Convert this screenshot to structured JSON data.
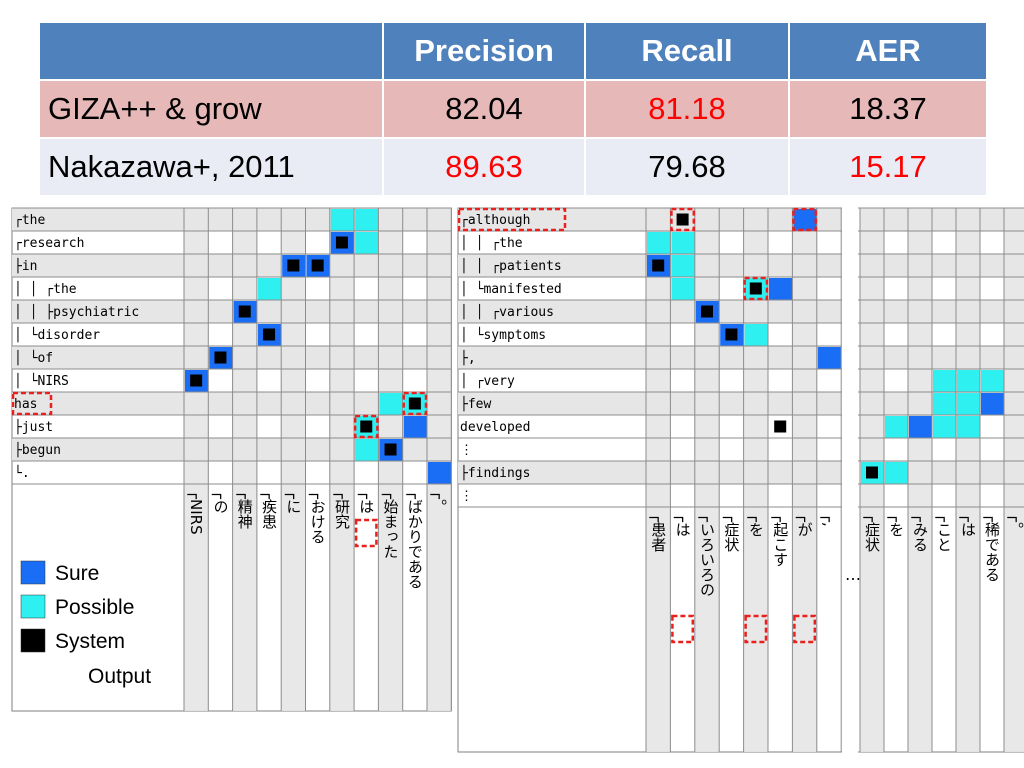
{
  "table": {
    "headers": [
      "",
      "Precision",
      "Recall",
      "AER"
    ],
    "rows": [
      {
        "name": "GIZA++ & grow",
        "values": [
          "82.04",
          "81.18",
          "18.37"
        ],
        "highlight": [
          false,
          true,
          false
        ]
      },
      {
        "name": "Nakazawa+, 2011",
        "values": [
          "89.63",
          "79.68",
          "15.17"
        ],
        "highlight": [
          true,
          false,
          true
        ]
      }
    ]
  },
  "legend": {
    "sure": "Sure",
    "possible": "Possible",
    "system_line1": "System",
    "system_line2": "Output"
  },
  "colors": {
    "sure": "#1a6ef5",
    "possible": "#2ef0f0",
    "system": "#000000",
    "header": "#4f81bd",
    "highlight_text": "#ff0000",
    "dashed_box": "#e8201e"
  },
  "ellipsis": "…",
  "left_grid": {
    "rows": [
      "┌the",
      "┌research",
      "├in",
      "│ │ ┌the",
      "│ │ ├psychiatric",
      "│ └disorder",
      "│   └of",
      "│     └NIRS",
      "has",
      "├just",
      "├begun",
      "└."
    ],
    "shaded_rows": [
      0,
      2,
      4,
      6,
      8,
      10
    ],
    "columns": [
      "┌NIRS",
      "┌の",
      "┌精神",
      "┌疾患",
      "┌に",
      "┌おける",
      "┌研究",
      "┌は",
      "┌始まった",
      "┌ばかりである",
      "┌。"
    ],
    "shaded_cols": [
      0,
      2,
      4,
      6,
      8,
      10
    ],
    "cells": [
      {
        "r": 0,
        "c": 6,
        "t": "possible"
      },
      {
        "r": 0,
        "c": 7,
        "t": "possible"
      },
      {
        "r": 1,
        "c": 6,
        "t": "sure"
      },
      {
        "r": 1,
        "c": 6,
        "t": "system"
      },
      {
        "r": 1,
        "c": 7,
        "t": "possible"
      },
      {
        "r": 2,
        "c": 4,
        "t": "sure"
      },
      {
        "r": 2,
        "c": 4,
        "t": "system"
      },
      {
        "r": 2,
        "c": 5,
        "t": "sure"
      },
      {
        "r": 2,
        "c": 5,
        "t": "system"
      },
      {
        "r": 3,
        "c": 3,
        "t": "possible"
      },
      {
        "r": 4,
        "c": 2,
        "t": "sure"
      },
      {
        "r": 4,
        "c": 2,
        "t": "system"
      },
      {
        "r": 5,
        "c": 3,
        "t": "sure"
      },
      {
        "r": 5,
        "c": 3,
        "t": "system"
      },
      {
        "r": 6,
        "c": 1,
        "t": "sure"
      },
      {
        "r": 6,
        "c": 1,
        "t": "system"
      },
      {
        "r": 7,
        "c": 0,
        "t": "sure"
      },
      {
        "r": 7,
        "c": 0,
        "t": "system"
      },
      {
        "r": 8,
        "c": 8,
        "t": "possible"
      },
      {
        "r": 8,
        "c": 9,
        "t": "possible"
      },
      {
        "r": 8,
        "c": 9,
        "t": "system"
      },
      {
        "r": 9,
        "c": 7,
        "t": "possible"
      },
      {
        "r": 9,
        "c": 7,
        "t": "system"
      },
      {
        "r": 9,
        "c": 9,
        "t": "sure"
      },
      {
        "r": 10,
        "c": 7,
        "t": "possible"
      },
      {
        "r": 10,
        "c": 8,
        "t": "sure"
      },
      {
        "r": 10,
        "c": 8,
        "t": "system"
      },
      {
        "r": 11,
        "c": 10,
        "t": "sure"
      }
    ],
    "dashed_rows": [
      8
    ],
    "dashed_cells": [
      {
        "r": 8,
        "c": 9
      },
      {
        "r": 9,
        "c": 7
      }
    ],
    "dashed_col_labels": [
      7
    ]
  },
  "right_grid": {
    "rows": [
      "┌although",
      "│ │   ┌the",
      "│ │ ┌patients",
      "│ └manifested",
      "│   │ ┌various",
      "│   └symptoms",
      "├,",
      "│ ┌very",
      "├few",
      "developed",
      "⋮",
      "├findings",
      "⋮"
    ],
    "shaded_rows": [
      0,
      2,
      4,
      6,
      8,
      11
    ],
    "columns": [
      "┌患者",
      "┌は",
      "┌いろいろの",
      "┌症状",
      "┌を",
      "┌起こす",
      "┌が",
      "┌,"
    ],
    "shaded_cols": [
      0,
      2,
      4,
      6
    ],
    "columns2": [
      "┌症状",
      "┌を",
      "┌みる",
      "┌こと",
      "┌は",
      "┌稀である",
      "┌。"
    ],
    "shaded_cols2": [
      0,
      2,
      4,
      6
    ],
    "cells": [
      {
        "r": 0,
        "c": 1,
        "t": "system"
      },
      {
        "r": 0,
        "c": 6,
        "t": "sure"
      },
      {
        "r": 1,
        "c": 0,
        "t": "possible"
      },
      {
        "r": 1,
        "c": 1,
        "t": "possible"
      },
      {
        "r": 2,
        "c": 0,
        "t": "sure"
      },
      {
        "r": 2,
        "c": 0,
        "t": "system"
      },
      {
        "r": 2,
        "c": 1,
        "t": "possible"
      },
      {
        "r": 3,
        "c": 1,
        "t": "possible"
      },
      {
        "r": 3,
        "c": 4,
        "t": "possible"
      },
      {
        "r": 3,
        "c": 4,
        "t": "system"
      },
      {
        "r": 3,
        "c": 5,
        "t": "sure"
      },
      {
        "r": 4,
        "c": 2,
        "t": "sure"
      },
      {
        "r": 4,
        "c": 2,
        "t": "system"
      },
      {
        "r": 5,
        "c": 3,
        "t": "sure"
      },
      {
        "r": 5,
        "c": 3,
        "t": "system"
      },
      {
        "r": 5,
        "c": 4,
        "t": "possible"
      },
      {
        "r": 6,
        "c": 7,
        "t": "sure"
      },
      {
        "r": 9,
        "c": 5,
        "t": "system"
      }
    ],
    "cells2": [
      {
        "r": 7,
        "c": 3,
        "t": "possible"
      },
      {
        "r": 7,
        "c": 4,
        "t": "possible"
      },
      {
        "r": 7,
        "c": 5,
        "t": "possible"
      },
      {
        "r": 8,
        "c": 3,
        "t": "possible"
      },
      {
        "r": 8,
        "c": 4,
        "t": "possible"
      },
      {
        "r": 8,
        "c": 5,
        "t": "sure"
      },
      {
        "r": 9,
        "c": 1,
        "t": "possible"
      },
      {
        "r": 9,
        "c": 2,
        "t": "sure"
      },
      {
        "r": 9,
        "c": 3,
        "t": "possible"
      },
      {
        "r": 9,
        "c": 4,
        "t": "possible"
      },
      {
        "r": 11,
        "c": 0,
        "t": "possible"
      },
      {
        "r": 11,
        "c": 0,
        "t": "system"
      },
      {
        "r": 11,
        "c": 1,
        "t": "possible"
      }
    ],
    "dashed_rows": [
      0
    ],
    "dashed_cells": [
      {
        "r": 0,
        "c": 1
      },
      {
        "r": 0,
        "c": 6
      },
      {
        "r": 3,
        "c": 4
      }
    ],
    "dashed_col_labels": [
      1,
      4,
      6
    ]
  }
}
